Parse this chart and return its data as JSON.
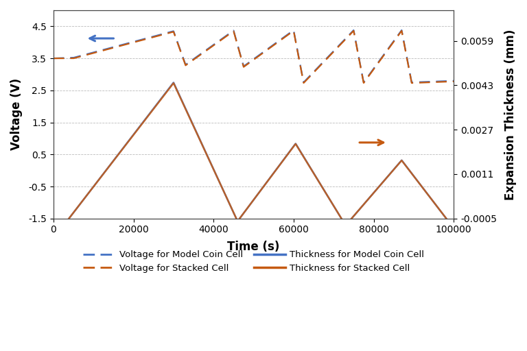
{
  "title": "",
  "xlabel": "Time (s)",
  "ylabel_left": "Voltage (V)",
  "ylabel_right": "Expansion Thickness (mm)",
  "xlim": [
    0,
    100000
  ],
  "ylim_left": [
    -1.5,
    5.0
  ],
  "ylim_right": [
    -0.0005,
    0.007
  ],
  "yticks_left": [
    -1.5,
    -0.5,
    0.5,
    1.5,
    2.5,
    3.5,
    4.5
  ],
  "yticks_right": [
    -0.0005,
    0.0011,
    0.0027,
    0.0043,
    0.0059
  ],
  "xticks": [
    0,
    20000,
    40000,
    60000,
    80000,
    100000
  ],
  "color_blue": "#4472C4",
  "color_orange": "#C55A11",
  "background": "#FFFFFF",
  "grid_color": "#BBBBBB"
}
